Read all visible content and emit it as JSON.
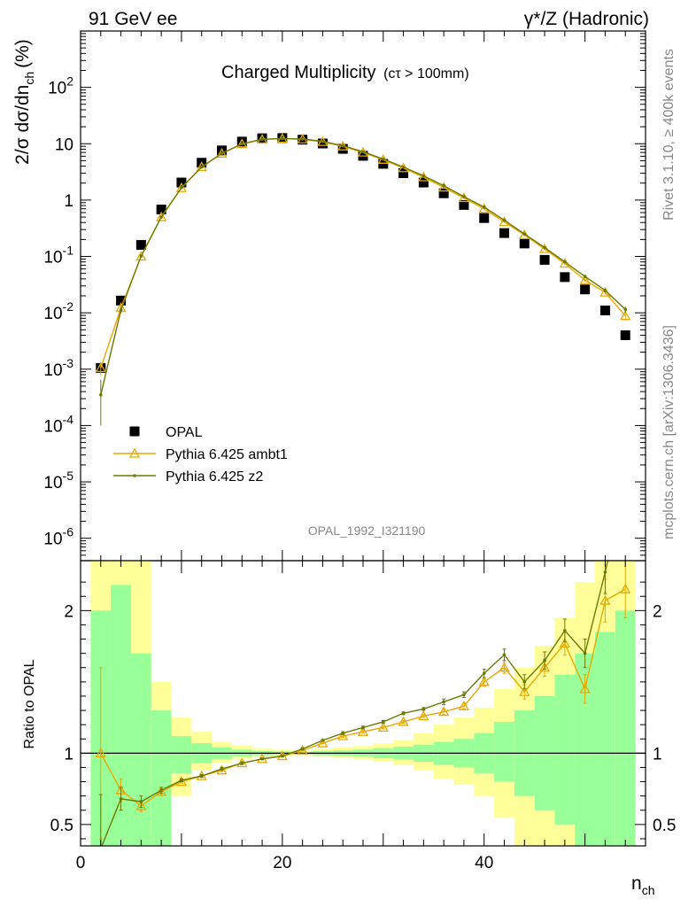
{
  "header": {
    "left": "91 GeV ee",
    "right": "γ*/Z (Hadronic)"
  },
  "side": {
    "rivet": "Rivet 3.1.10, ≥ 400k events",
    "mcplots": "mcplots.cern.ch [arXiv:1306.3436]"
  },
  "chart_data": [
    {
      "type": "scatter",
      "title": "Charged Multiplicity",
      "title_note": "(cτ > 100mm)",
      "watermark": "OPAL_1992_I321190",
      "ylabel": "2/σ dσ/dn",
      "ylabel_sub": "ch",
      "ylabel_unit": "(%)",
      "yscale": "log",
      "xlim": [
        0,
        56
      ],
      "ylim": [
        4e-07,
        1000.0
      ],
      "y_ticks": [
        {
          "label": "10",
          "exp": "-6",
          "value": 1e-06
        },
        {
          "label": "10",
          "exp": "-5",
          "value": 1e-05
        },
        {
          "label": "10",
          "exp": "-4",
          "value": 0.0001
        },
        {
          "label": "10",
          "exp": "-3",
          "value": 0.001
        },
        {
          "label": "10",
          "exp": "-2",
          "value": 0.01
        },
        {
          "label": "10",
          "exp": "-1",
          "value": 0.1
        },
        {
          "label": "1",
          "exp": "",
          "value": 1
        },
        {
          "label": "10",
          "exp": "",
          "value": 10
        },
        {
          "label": "10",
          "exp": "2",
          "value": 100
        }
      ],
      "legend": {
        "position": "lower-left"
      },
      "series": [
        {
          "name": "OPAL",
          "marker": "square",
          "color": "#000000",
          "x": [
            2,
            4,
            6,
            8,
            10,
            12,
            14,
            16,
            18,
            20,
            22,
            24,
            26,
            28,
            30,
            32,
            34,
            36,
            38,
            40,
            42,
            44,
            46,
            48,
            50,
            52,
            54
          ],
          "y": [
            0.00105,
            0.0165,
            0.16,
            0.68,
            2.05,
            4.6,
            7.6,
            10.9,
            12.5,
            12.6,
            11.8,
            10.1,
            8.1,
            6.1,
            4.4,
            3.0,
            2.05,
            1.32,
            0.82,
            0.48,
            0.26,
            0.17,
            0.087,
            0.043,
            0.026,
            0.011,
            0.004
          ]
        },
        {
          "name": "Pythia 6.425 ambt1",
          "marker": "triangle",
          "color": "#e8a800",
          "x": [
            2,
            4,
            6,
            8,
            10,
            12,
            14,
            16,
            18,
            20,
            22,
            24,
            26,
            28,
            30,
            32,
            34,
            36,
            38,
            40,
            42,
            44,
            46,
            48,
            50,
            52,
            54
          ],
          "y": [
            0.00105,
            0.0122,
            0.1,
            0.5,
            1.64,
            3.88,
            6.7,
            9.9,
            11.9,
            12.3,
            12.0,
            10.8,
            9.0,
            7.0,
            5.2,
            3.7,
            2.55,
            1.68,
            1.09,
            0.7,
            0.41,
            0.24,
            0.136,
            0.075,
            0.038,
            0.023,
            0.0088
          ],
          "yerr": [
            0.0003,
            0.0015,
            0.006,
            0.01,
            0.02,
            0.03,
            0.04,
            0.05,
            0.05,
            0.05,
            0.05,
            0.05,
            0.04,
            0.04,
            0.03,
            0.03,
            0.02,
            0.02,
            0.015,
            0.01,
            0.01,
            0.008,
            0.005,
            0.004,
            0.003,
            0.002,
            0.0014
          ]
        },
        {
          "name": "Pythia 6.425 z2",
          "marker": "dot",
          "color": "#6b7a00",
          "x": [
            2,
            4,
            6,
            8,
            10,
            12,
            14,
            16,
            18,
            20,
            22,
            24,
            26,
            28,
            30,
            32,
            34,
            36,
            38,
            40,
            42,
            44,
            46,
            48,
            50,
            52,
            54
          ],
          "y": [
            0.00035,
            0.0112,
            0.102,
            0.5,
            1.66,
            3.85,
            6.75,
            9.95,
            12.0,
            12.35,
            12.1,
            11.0,
            9.2,
            7.2,
            5.35,
            3.85,
            2.68,
            1.8,
            1.15,
            0.75,
            0.44,
            0.25,
            0.143,
            0.08,
            0.044,
            0.025,
            0.0115
          ],
          "yerr": [
            0.0003,
            0.0015,
            0.006,
            0.01,
            0.02,
            0.03,
            0.04,
            0.05,
            0.05,
            0.05,
            0.05,
            0.05,
            0.04,
            0.04,
            0.03,
            0.03,
            0.02,
            0.02,
            0.015,
            0.01,
            0.01,
            0.008,
            0.005,
            0.004,
            0.003,
            0.002,
            0.0014
          ]
        }
      ]
    },
    {
      "type": "line",
      "ylabel": "Ratio to OPAL",
      "xlabel": "n",
      "xlabel_sub": "ch",
      "xlim": [
        0,
        56
      ],
      "ylim": [
        0.35,
        2.35
      ],
      "x_ticks": [
        0,
        20,
        40
      ],
      "y_ticks": [
        0.5,
        1,
        2
      ],
      "reference_line": 1,
      "bands": {
        "inner_color": "#99ff99",
        "outer_color": "#ffff99",
        "edges": [
          1,
          3,
          5,
          7,
          9,
          11,
          13,
          15,
          17,
          19,
          21,
          23,
          25,
          27,
          29,
          31,
          33,
          35,
          37,
          39,
          41,
          43,
          45,
          47,
          49,
          51,
          53,
          55
        ],
        "inner_low": [
          0.0,
          0.0,
          0.0,
          0.35,
          0.86,
          0.93,
          0.96,
          0.975,
          0.985,
          0.988,
          0.99,
          0.985,
          0.98,
          0.975,
          0.965,
          0.955,
          0.94,
          0.92,
          0.9,
          0.86,
          0.8,
          0.7,
          0.6,
          0.5,
          0.0,
          0.0,
          0.0
        ],
        "inner_high": [
          2.0,
          2.18,
          1.7,
          1.3,
          1.12,
          1.07,
          1.04,
          1.025,
          1.015,
          1.012,
          1.01,
          1.015,
          1.02,
          1.025,
          1.035,
          1.045,
          1.06,
          1.08,
          1.1,
          1.14,
          1.22,
          1.3,
          1.4,
          1.55,
          1.7,
          1.85,
          2.0
        ],
        "outer_low": [
          0.0,
          0.0,
          0.0,
          0.0,
          0.7,
          0.88,
          0.93,
          0.96,
          0.975,
          0.98,
          0.985,
          0.975,
          0.965,
          0.955,
          0.94,
          0.92,
          0.88,
          0.82,
          0.78,
          0.7,
          0.55,
          0.0,
          0.0,
          0.0,
          0.0,
          0.0,
          0.0
        ],
        "outer_high": [
          2.35,
          2.35,
          2.35,
          1.5,
          1.25,
          1.15,
          1.08,
          1.055,
          1.035,
          1.025,
          1.02,
          1.03,
          1.04,
          1.05,
          1.07,
          1.09,
          1.14,
          1.2,
          1.25,
          1.32,
          1.45,
          1.6,
          1.75,
          1.95,
          2.2,
          2.35,
          2.35
        ]
      },
      "series": [
        {
          "name": "Pythia 6.425 ambt1",
          "color": "#e8a800",
          "marker": "triangle",
          "x": [
            2,
            4,
            6,
            8,
            10,
            12,
            14,
            16,
            18,
            20,
            22,
            24,
            26,
            28,
            30,
            32,
            34,
            36,
            38,
            40,
            42,
            44,
            46,
            48,
            50,
            52,
            54
          ],
          "y": [
            1.0,
            0.74,
            0.63,
            0.73,
            0.8,
            0.84,
            0.88,
            0.93,
            0.96,
            0.98,
            1.02,
            1.07,
            1.12,
            1.15,
            1.18,
            1.22,
            1.26,
            1.29,
            1.33,
            1.5,
            1.6,
            1.43,
            1.6,
            1.77,
            1.45,
            2.07,
            2.15
          ],
          "yerr": [
            0.6,
            0.08,
            0.04,
            0.02,
            0.01,
            0.01,
            0.01,
            0.01,
            0.005,
            0.005,
            0.005,
            0.005,
            0.01,
            0.01,
            0.01,
            0.01,
            0.01,
            0.02,
            0.02,
            0.03,
            0.04,
            0.05,
            0.06,
            0.08,
            0.1,
            0.15,
            0.2
          ]
        },
        {
          "name": "Pythia 6.425 z2",
          "color": "#6b7a00",
          "marker": "dot",
          "x": [
            2,
            4,
            6,
            8,
            10,
            12,
            14,
            16,
            18,
            20,
            22,
            24,
            26,
            28,
            30,
            32,
            34,
            36,
            38,
            40,
            42,
            44,
            46,
            48,
            50,
            52,
            54
          ],
          "y": [
            0.33,
            0.68,
            0.66,
            0.74,
            0.81,
            0.84,
            0.89,
            0.93,
            0.96,
            0.98,
            1.03,
            1.09,
            1.14,
            1.18,
            1.22,
            1.28,
            1.31,
            1.36,
            1.41,
            1.56,
            1.69,
            1.5,
            1.65,
            1.86,
            1.7,
            2.27,
            2.88
          ],
          "yerr": [
            0.38,
            0.08,
            0.04,
            0.02,
            0.01,
            0.01,
            0.01,
            0.01,
            0.005,
            0.005,
            0.005,
            0.005,
            0.01,
            0.01,
            0.01,
            0.01,
            0.01,
            0.02,
            0.02,
            0.03,
            0.04,
            0.05,
            0.06,
            0.08,
            0.1,
            0.15,
            0.2
          ]
        }
      ]
    }
  ]
}
